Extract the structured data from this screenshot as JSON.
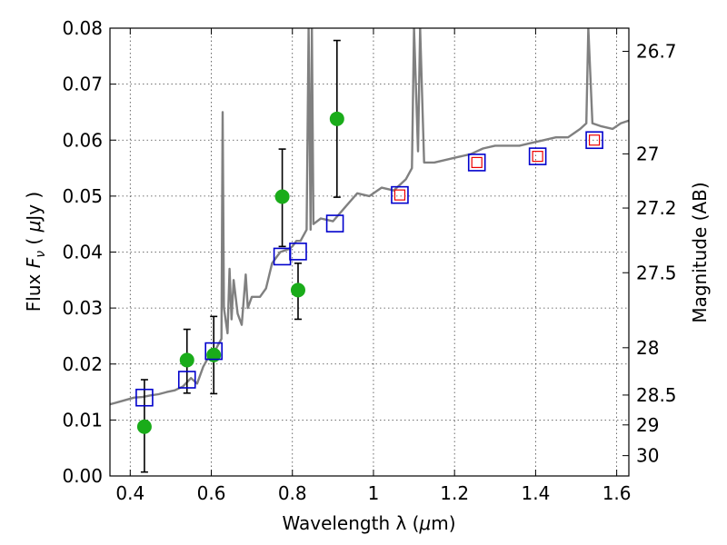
{
  "chart_data": {
    "type": "scatter",
    "xlabel_prefix": "Wavelength  λ (",
    "xlabel_mu": "μ",
    "xlabel_suffix": "m)",
    "ylabel_prefix": "Flux  ",
    "ylabel_F": "F",
    "ylabel_nu": "ν",
    "ylabel_unit_open": "  ( ",
    "ylabel_mu": "μ",
    "ylabel_unit_close": "Jy )",
    "y2label": "Magnitude (AB)",
    "xlim": [
      0.35,
      1.63
    ],
    "ylim": [
      0,
      0.08
    ],
    "grid": true,
    "xticks": [
      {
        "value": 0.4,
        "label": "0.4"
      },
      {
        "value": 0.6,
        "label": "0.6"
      },
      {
        "value": 0.8,
        "label": "0.8"
      },
      {
        "value": 1.0,
        "label": "1"
      },
      {
        "value": 1.2,
        "label": "1.2"
      },
      {
        "value": 1.4,
        "label": "1.4"
      },
      {
        "value": 1.6,
        "label": "1.6"
      }
    ],
    "yticks": [
      {
        "value": 0.0,
        "label": "0.00"
      },
      {
        "value": 0.01,
        "label": "0.01"
      },
      {
        "value": 0.02,
        "label": "0.02"
      },
      {
        "value": 0.03,
        "label": "0.03"
      },
      {
        "value": 0.04,
        "label": "0.04"
      },
      {
        "value": 0.05,
        "label": "0.05"
      },
      {
        "value": 0.06,
        "label": "0.06"
      },
      {
        "value": 0.07,
        "label": "0.07"
      },
      {
        "value": 0.08,
        "label": "0.08"
      }
    ],
    "mag_ticks": [
      {
        "mag": 26.7,
        "label": "26.7"
      },
      {
        "mag": 27,
        "label": "27"
      },
      {
        "mag": 27.2,
        "label": "27.2"
      },
      {
        "mag": 27.5,
        "label": "27.5"
      },
      {
        "mag": 28,
        "label": "28"
      },
      {
        "mag": 28.5,
        "label": "28.5"
      },
      {
        "mag": 29,
        "label": "29"
      },
      {
        "mag": 30,
        "label": "30"
      }
    ],
    "colors": {
      "spectrum": "#808080",
      "observed": "#1aac1a",
      "model": "#0000cc",
      "model_inner": "#ee0000",
      "errorbar": "#000000",
      "grid": "#444444"
    },
    "spectrum": [
      [
        0.35,
        0.0128
      ],
      [
        0.37,
        0.0132
      ],
      [
        0.39,
        0.0136
      ],
      [
        0.41,
        0.014
      ],
      [
        0.43,
        0.0141
      ],
      [
        0.45,
        0.0144
      ],
      [
        0.47,
        0.0146
      ],
      [
        0.49,
        0.015
      ],
      [
        0.51,
        0.0153
      ],
      [
        0.53,
        0.016
      ],
      [
        0.55,
        0.0175
      ],
      [
        0.565,
        0.0165
      ],
      [
        0.58,
        0.0195
      ],
      [
        0.595,
        0.0215
      ],
      [
        0.61,
        0.0225
      ],
      [
        0.625,
        0.0245
      ],
      [
        0.628,
        0.065
      ],
      [
        0.631,
        0.03
      ],
      [
        0.64,
        0.0255
      ],
      [
        0.645,
        0.037
      ],
      [
        0.65,
        0.028
      ],
      [
        0.655,
        0.035
      ],
      [
        0.665,
        0.029
      ],
      [
        0.675,
        0.027
      ],
      [
        0.685,
        0.036
      ],
      [
        0.69,
        0.03
      ],
      [
        0.7,
        0.032
      ],
      [
        0.72,
        0.032
      ],
      [
        0.735,
        0.0335
      ],
      [
        0.75,
        0.038
      ],
      [
        0.77,
        0.04
      ],
      [
        0.79,
        0.0405
      ],
      [
        0.8,
        0.041
      ],
      [
        0.81,
        0.042
      ],
      [
        0.82,
        0.042
      ],
      [
        0.835,
        0.044
      ],
      [
        0.84,
        0.08
      ],
      [
        0.845,
        0.044
      ],
      [
        0.848,
        0.08
      ],
      [
        0.852,
        0.045
      ],
      [
        0.87,
        0.046
      ],
      [
        0.9,
        0.0455
      ],
      [
        0.93,
        0.048
      ],
      [
        0.96,
        0.0505
      ],
      [
        0.99,
        0.05
      ],
      [
        1.02,
        0.0515
      ],
      [
        1.05,
        0.051
      ],
      [
        1.08,
        0.053
      ],
      [
        1.095,
        0.055
      ],
      [
        1.1,
        0.08
      ],
      [
        1.11,
        0.058
      ],
      [
        1.115,
        0.08
      ],
      [
        1.125,
        0.056
      ],
      [
        1.15,
        0.056
      ],
      [
        1.18,
        0.0565
      ],
      [
        1.21,
        0.057
      ],
      [
        1.24,
        0.0575
      ],
      [
        1.27,
        0.0585
      ],
      [
        1.3,
        0.059
      ],
      [
        1.33,
        0.059
      ],
      [
        1.36,
        0.059
      ],
      [
        1.39,
        0.0595
      ],
      [
        1.42,
        0.06
      ],
      [
        1.45,
        0.0605
      ],
      [
        1.48,
        0.0605
      ],
      [
        1.51,
        0.062
      ],
      [
        1.525,
        0.063
      ],
      [
        1.53,
        0.08
      ],
      [
        1.54,
        0.063
      ],
      [
        1.56,
        0.0625
      ],
      [
        1.59,
        0.062
      ],
      [
        1.61,
        0.063
      ],
      [
        1.63,
        0.0635
      ]
    ],
    "observed": [
      {
        "x": 0.435,
        "y": 0.0088,
        "lo": 0.0007,
        "hi": 0.0172
      },
      {
        "x": 0.54,
        "y": 0.0207,
        "lo": 0.0148,
        "hi": 0.0262
      },
      {
        "x": 0.606,
        "y": 0.0216,
        "lo": 0.0147,
        "hi": 0.0285
      },
      {
        "x": 0.775,
        "y": 0.0499,
        "lo": 0.041,
        "hi": 0.0584
      },
      {
        "x": 0.814,
        "y": 0.0332,
        "lo": 0.028,
        "hi": 0.038
      },
      {
        "x": 0.91,
        "y": 0.0638,
        "lo": 0.0498,
        "hi": 0.0778
      }
    ],
    "model": [
      {
        "x": 0.435,
        "y": 0.014,
        "inner": false
      },
      {
        "x": 0.54,
        "y": 0.0172,
        "inner": false
      },
      {
        "x": 0.606,
        "y": 0.0223,
        "inner": false
      },
      {
        "x": 0.775,
        "y": 0.0392,
        "inner": false
      },
      {
        "x": 0.814,
        "y": 0.0401,
        "inner": false
      },
      {
        "x": 0.905,
        "y": 0.0451,
        "inner": false
      },
      {
        "x": 1.065,
        "y": 0.0502,
        "inner": true
      },
      {
        "x": 1.255,
        "y": 0.056,
        "inner": true
      },
      {
        "x": 1.405,
        "y": 0.0571,
        "inner": true
      },
      {
        "x": 1.545,
        "y": 0.06,
        "inner": true
      }
    ]
  }
}
